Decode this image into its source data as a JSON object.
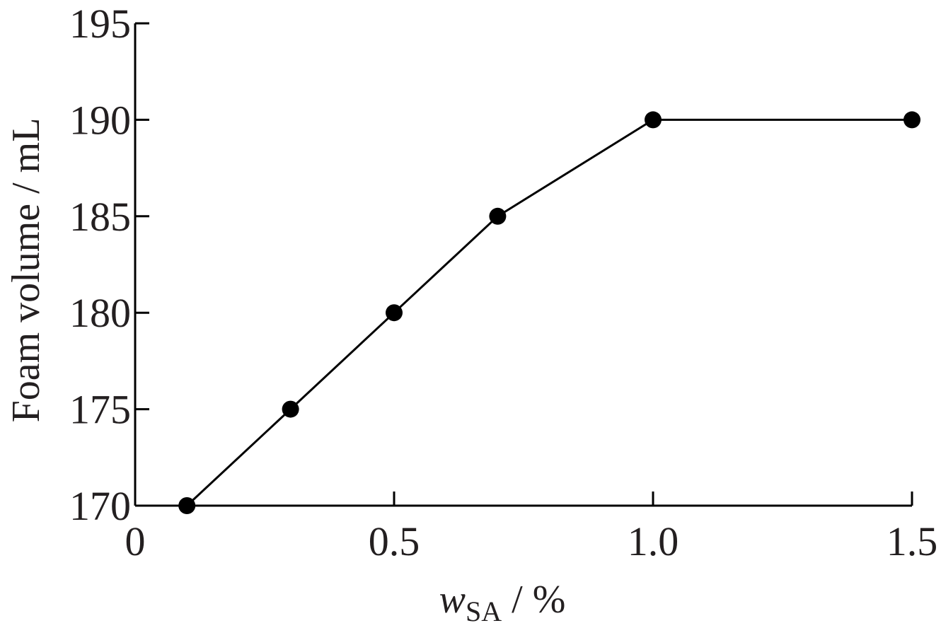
{
  "chart_data": {
    "type": "line",
    "xlabel": {
      "main": "w",
      "sub": "SA",
      "suffix": " / %"
    },
    "ylabel": "Foam volume / mL",
    "xlim": [
      0,
      1.5
    ],
    "ylim": [
      170,
      195
    ],
    "xticks": [
      {
        "value": 0,
        "label": "0"
      },
      {
        "value": 0.5,
        "label": "0.5"
      },
      {
        "value": 1.0,
        "label": "1.0"
      },
      {
        "value": 1.5,
        "label": "1.5"
      }
    ],
    "yticks": [
      {
        "value": 170,
        "label": "170"
      },
      {
        "value": 175,
        "label": "175"
      },
      {
        "value": 180,
        "label": "180"
      },
      {
        "value": 185,
        "label": "185"
      },
      {
        "value": 190,
        "label": "190"
      },
      {
        "value": 195,
        "label": "195"
      }
    ],
    "x": [
      0.1,
      0.3,
      0.5,
      0.7,
      1.0,
      1.5
    ],
    "series": [
      {
        "values": [
          170,
          175,
          180,
          185,
          190,
          190
        ]
      }
    ],
    "marker": "filled-circle",
    "color": "#000000",
    "grid": false,
    "legend": "none"
  }
}
